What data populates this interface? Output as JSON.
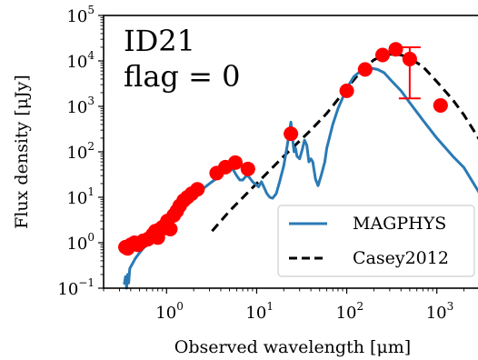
{
  "chart_data": {
    "type": "scatter",
    "xlabel": "Observed wavelength [μm]",
    "ylabel": "Flux density [μJy]",
    "xscale": "log",
    "yscale": "log",
    "xlim": [
      0.2,
      3000
    ],
    "ylim": [
      0.1,
      100000
    ],
    "xticks": [
      {
        "base": "10",
        "exp": "0",
        "value": 1
      },
      {
        "base": "10",
        "exp": "1",
        "value": 10
      },
      {
        "base": "10",
        "exp": "2",
        "value": 100
      },
      {
        "base": "10",
        "exp": "3",
        "value": 1000
      }
    ],
    "yticks": [
      {
        "base": "10",
        "exp": "−1",
        "value": 0.1
      },
      {
        "base": "10",
        "exp": "0",
        "value": 1
      },
      {
        "base": "10",
        "exp": "1",
        "value": 10
      },
      {
        "base": "10",
        "exp": "2",
        "value": 100
      },
      {
        "base": "10",
        "exp": "3",
        "value": 1000
      },
      {
        "base": "10",
        "exp": "4",
        "value": 10000
      },
      {
        "base": "10",
        "exp": "5",
        "value": 100000
      }
    ],
    "annotations": [
      "ID21",
      "flag = 0"
    ],
    "legend_position": "lower-right",
    "colors": {
      "magphys": "#2a7ab4",
      "casey": "#000000",
      "points": "#ff0000"
    },
    "series": [
      {
        "name": "MAGPHYS",
        "kind": "line",
        "style": "solid",
        "x": [
          0.34,
          0.35,
          0.36,
          0.37,
          0.38,
          0.39,
          0.42,
          0.45,
          0.5,
          0.55,
          0.6,
          0.7,
          0.8,
          0.9,
          1.0,
          1.2,
          1.4,
          1.6,
          2.0,
          2.5,
          3.0,
          3.5,
          4.0,
          4.5,
          5.0,
          5.5,
          6.0,
          6.5,
          7.0,
          7.7,
          8.2,
          9.0,
          10.5,
          11.3,
          12.0,
          13.0,
          14.0,
          15.0,
          16.5,
          18.0,
          20.0,
          22.0,
          24.0,
          25.0,
          26.0,
          27.0,
          28.0,
          30.0,
          32.0,
          34.0,
          36.0,
          38.0,
          40.0,
          42.0,
          45.0,
          48.0,
          52.0,
          57.0,
          60.0,
          70.0,
          80.0,
          100.0,
          120.0,
          150.0,
          180.0,
          220.0,
          260.0,
          300.0,
          400.0,
          500.0,
          700.0,
          1000.0,
          1500.0,
          2000.0,
          3000.0
        ],
        "y": [
          0.12,
          0.18,
          0.1,
          0.2,
          0.13,
          0.27,
          0.35,
          0.45,
          0.6,
          0.75,
          0.9,
          1.0,
          1.3,
          1.6,
          2.0,
          3.3,
          5.0,
          7.0,
          10.0,
          15.0,
          20.0,
          25.0,
          32.0,
          38.0,
          45.0,
          40.0,
          30.0,
          24.0,
          24.0,
          30.0,
          28.0,
          22.0,
          17.0,
          22.0,
          17.0,
          12.0,
          10.0,
          9.5,
          12.0,
          22.0,
          50.0,
          150.0,
          450.0,
          200.0,
          100.0,
          120.0,
          80.0,
          70.0,
          110.0,
          180.0,
          140.0,
          60.0,
          70.0,
          60.0,
          25.0,
          18.0,
          30.0,
          60.0,
          120.0,
          400.0,
          900.0,
          2500.0,
          4500.0,
          6500.0,
          7000.0,
          6500.0,
          5500.0,
          4000.0,
          2200.0,
          1200.0,
          500.0,
          200.0,
          80.0,
          45.0,
          12.0
        ]
      },
      {
        "name": "Casey2012",
        "kind": "line",
        "style": "dashed",
        "x": [
          3.2,
          5.0,
          10.0,
          20.0,
          40.0,
          60.0,
          100.0,
          150.0,
          200.0,
          250.0,
          300.0,
          350.0,
          400.0,
          500.0,
          700.0,
          1000.0,
          1500.0,
          2000.0,
          3000.0
        ],
        "y": [
          1.8,
          5.0,
          20.0,
          80.0,
          300.0,
          700.0,
          2500.0,
          6500.0,
          10500.0,
          13000.0,
          14000.0,
          14000.0,
          13500.0,
          11500.0,
          7500.0,
          3500.0,
          1400.0,
          650.0,
          180.0
        ]
      },
      {
        "name": "",
        "kind": "points",
        "x": [
          0.35,
          0.37,
          0.4,
          0.44,
          0.48,
          0.55,
          0.62,
          0.7,
          0.75,
          0.8,
          0.85,
          0.9,
          0.95,
          1.02,
          1.1,
          1.2,
          1.3,
          1.4,
          1.55,
          1.7,
          1.9,
          2.2,
          3.6,
          4.5,
          5.8,
          8.0,
          24.0,
          100.0,
          160.0,
          250.0,
          350.0,
          500.0,
          1100.0
        ],
        "y": [
          0.8,
          0.75,
          0.9,
          1.0,
          0.9,
          1.1,
          1.2,
          1.5,
          1.8,
          1.3,
          2.0,
          2.2,
          2.1,
          3.0,
          2.0,
          4.0,
          5.0,
          6.5,
          8.5,
          10.0,
          12.0,
          15.0,
          34.0,
          46.0,
          58.0,
          42.0,
          250.0,
          2200.0,
          6500.0,
          13500.0,
          18000.0,
          11000.0,
          1050.0
        ],
        "yerr_lo": [
          0,
          0,
          0,
          0,
          0,
          0,
          0,
          0,
          0,
          0,
          0,
          0,
          0,
          0,
          0,
          0,
          0,
          0,
          0,
          0,
          0,
          0,
          0,
          0,
          0,
          0,
          0,
          0,
          0,
          0,
          0,
          9500.0,
          0
        ],
        "yerr_hi": [
          0,
          0,
          0,
          0,
          0,
          0,
          0,
          0,
          0,
          0,
          0,
          0,
          0,
          0,
          0,
          0,
          0,
          0,
          0,
          0,
          0,
          0,
          0,
          0,
          0,
          0,
          0,
          0,
          0,
          0,
          0,
          9000.0,
          0
        ]
      }
    ]
  }
}
